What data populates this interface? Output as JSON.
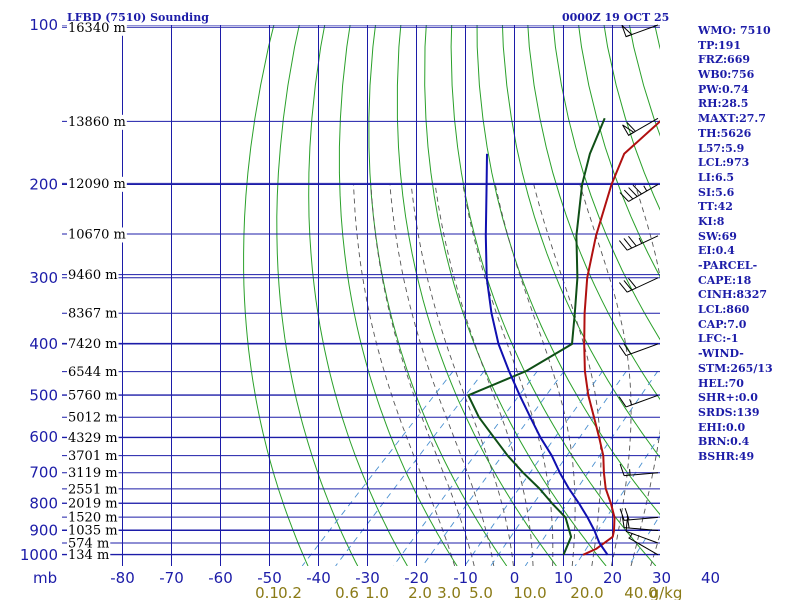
{
  "header": {
    "station": "LFBD (7510) Sounding",
    "time": "0000Z 19 OCT 25"
  },
  "colors": {
    "grid": "#1c1ca8",
    "dry_adiabat": "#2aa02a",
    "moist_adiabat": "#555555",
    "mixing_ratio": "#4a90d0",
    "temperature": "#b01010",
    "dewpoint": "#0f4f16",
    "parcel": "#1010b0",
    "axis_text": "#1c1ca8",
    "mixing_text": "#8a7a16"
  },
  "chart_data": {
    "type": "skew-t",
    "pressure_levels": [
      100,
      200,
      300,
      400,
      500,
      600,
      700,
      800,
      900,
      1000
    ],
    "pressure_range": [
      100,
      1050
    ],
    "temperature_ticks": [
      -80,
      -70,
      -60,
      -50,
      -40,
      -30,
      -20,
      -10,
      0,
      10,
      20,
      30,
      40
    ],
    "x_axis_unit": "mb",
    "height_labels": [
      {
        "p": 101,
        "label": "16340 m"
      },
      {
        "p": 152,
        "label": "13860 m"
      },
      {
        "p": 199,
        "label": "12090 m"
      },
      {
        "p": 248,
        "label": "10670 m"
      },
      {
        "p": 296,
        "label": "9460 m"
      },
      {
        "p": 350,
        "label": "8367 m"
      },
      {
        "p": 399,
        "label": "7420 m"
      },
      {
        "p": 451,
        "label": "6544 m"
      },
      {
        "p": 499,
        "label": "5760 m"
      },
      {
        "p": 550,
        "label": "5012 m"
      },
      {
        "p": 601,
        "label": "4329 m"
      },
      {
        "p": 650,
        "label": "3701 m"
      },
      {
        "p": 700,
        "label": "3119 m"
      },
      {
        "p": 751,
        "label": "2551 m"
      },
      {
        "p": 799,
        "label": "2019 m"
      },
      {
        "p": 849,
        "label": "1520 m"
      },
      {
        "p": 898,
        "label": "1035 m"
      },
      {
        "p": 950,
        "label": "574 m"
      },
      {
        "p": 998,
        "label": "134 m"
      }
    ],
    "mixing_ratio_labels": [
      "0.1",
      "0.2",
      "0.6",
      "1.0",
      "2.0",
      "3.0",
      "5.0",
      "10.0",
      "20.0",
      "40.0",
      "g/kg"
    ],
    "mixing_ratio_values": [
      0.1,
      0.2,
      0.6,
      1.0,
      2.0,
      3.0,
      5.0,
      10.0,
      20.0,
      40.0
    ],
    "series": [
      {
        "key": "temperature",
        "points": [
          [
            1000,
            14.0
          ],
          [
            975,
            15.5
          ],
          [
            925,
            16.5
          ],
          [
            900,
            15.5
          ],
          [
            850,
            13.0
          ],
          [
            800,
            9.5
          ],
          [
            750,
            5.5
          ],
          [
            700,
            2.0
          ],
          [
            650,
            -1.5
          ],
          [
            600,
            -6.0
          ],
          [
            550,
            -11.0
          ],
          [
            500,
            -16.5
          ],
          [
            450,
            -22.0
          ],
          [
            400,
            -27.5
          ],
          [
            350,
            -33.5
          ],
          [
            300,
            -40.0
          ],
          [
            250,
            -46.5
          ],
          [
            200,
            -53.5
          ],
          [
            175,
            -57.0
          ],
          [
            150,
            -56.0
          ],
          [
            125,
            -56.5
          ],
          [
            100,
            -56.0
          ]
        ]
      },
      {
        "key": "dewpoint",
        "points": [
          [
            1000,
            10.0
          ],
          [
            925,
            8.0
          ],
          [
            850,
            3.0
          ],
          [
            800,
            -2.5
          ],
          [
            750,
            -8.0
          ],
          [
            700,
            -14.5
          ],
          [
            650,
            -21.0
          ],
          [
            600,
            -27.5
          ],
          [
            550,
            -34.5
          ],
          [
            500,
            -41.0
          ],
          [
            450,
            -34.0
          ],
          [
            400,
            -30.0
          ],
          [
            350,
            -35.5
          ],
          [
            300,
            -42.0
          ],
          [
            250,
            -50.5
          ],
          [
            200,
            -59.5
          ],
          [
            175,
            -64.0
          ],
          [
            150,
            -68.0
          ]
        ]
      },
      {
        "key": "parcel",
        "points": [
          [
            1000,
            19.0
          ],
          [
            950,
            15.0
          ],
          [
            900,
            11.5
          ],
          [
            850,
            7.5
          ],
          [
            800,
            3.0
          ],
          [
            750,
            -2.0
          ],
          [
            700,
            -7.0
          ],
          [
            650,
            -12.0
          ],
          [
            600,
            -18.0
          ],
          [
            550,
            -24.0
          ],
          [
            500,
            -30.5
          ],
          [
            450,
            -37.5
          ],
          [
            400,
            -45.0
          ],
          [
            350,
            -52.5
          ],
          [
            300,
            -60.5
          ],
          [
            250,
            -69.0
          ],
          [
            200,
            -79.0
          ],
          [
            175,
            -85.0
          ]
        ]
      }
    ],
    "winds": [
      {
        "p": 1000,
        "dir": 300,
        "spd": 5
      },
      {
        "p": 950,
        "dir": 290,
        "spd": 10
      },
      {
        "p": 900,
        "dir": 275,
        "spd": 20
      },
      {
        "p": 850,
        "dir": 265,
        "spd": 20
      },
      {
        "p": 700,
        "dir": 265,
        "spd": 15
      },
      {
        "p": 500,
        "dir": 250,
        "spd": 15
      },
      {
        "p": 400,
        "dir": 250,
        "spd": 20
      },
      {
        "p": 300,
        "dir": 245,
        "spd": 30
      },
      {
        "p": 250,
        "dir": 245,
        "spd": 35
      },
      {
        "p": 200,
        "dir": 240,
        "spd": 45
      },
      {
        "p": 150,
        "dir": 240,
        "spd": 60
      },
      {
        "p": 100,
        "dir": 250,
        "spd": 50
      }
    ]
  },
  "indices": [
    "WMO: 7510",
    "TP:191",
    "FRZ:669",
    "WB0:756",
    "PW:0.74",
    "RH:28.5",
    "MAXT:27.7",
    "TH:5626",
    "L57:5.9",
    "LCL:973",
    "LI:6.5",
    "SI:5.6",
    "TT:42",
    "KI:8",
    "SW:69",
    "EI:0.4",
    "-PARCEL-",
    "CAPE:18",
    "CINH:8327",
    "LCL:860",
    "CAP:7.0",
    "LFC:-1",
    "-WIND-",
    "STM:265/13",
    "HEL:70",
    "SHR+:0.0",
    "SRDS:139",
    "EHI:0.0",
    "BRN:0.4",
    "BSHR:49"
  ]
}
